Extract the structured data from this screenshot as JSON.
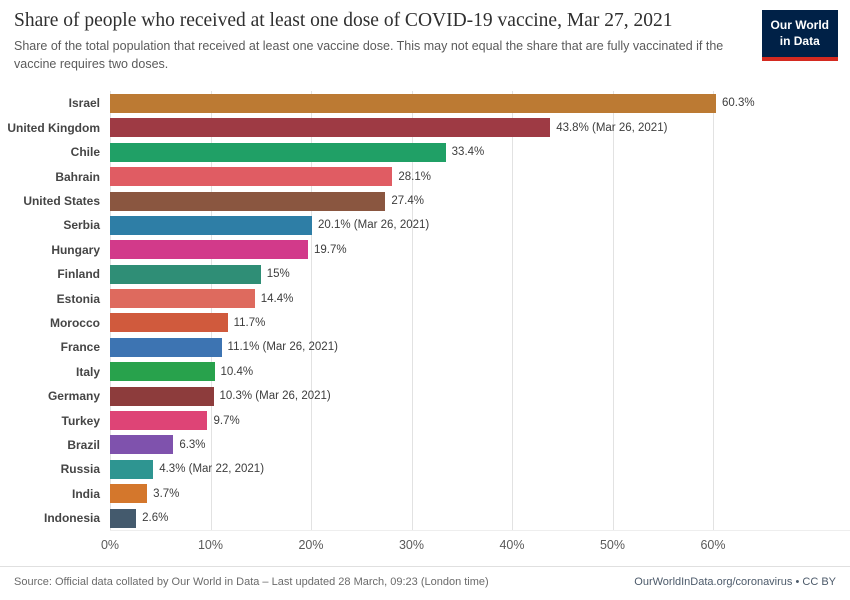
{
  "header": {
    "title": "Share of people who received at least one dose of COVID-19 vaccine, Mar 27, 2021",
    "subtitle": "Share of the total population that received at least one vaccine dose. This may not equal the share that are fully vaccinated if the vaccine requires two doses.",
    "logo": {
      "line1": "Our World",
      "line2": "in Data",
      "bg_color": "#002147",
      "accent_color": "#d42a20"
    }
  },
  "chart_data": {
    "type": "bar",
    "orientation": "horizontal",
    "unit": "%",
    "grid": true,
    "xlim": [
      0,
      60.9
    ],
    "x_ticks": [
      "0%",
      "10%",
      "20%",
      "30%",
      "40%",
      "50%",
      "60%"
    ],
    "x_tick_values": [
      0,
      10,
      20,
      30,
      40,
      50,
      60
    ],
    "bars": [
      {
        "label": "Israel",
        "value": 60.3,
        "display": "60.3%",
        "color": "#bc7a33"
      },
      {
        "label": "United Kingdom",
        "value": 43.8,
        "display": "43.8% (Mar 26, 2021)",
        "color": "#9e3a44"
      },
      {
        "label": "Chile",
        "value": 33.4,
        "display": "33.4%",
        "color": "#20a066"
      },
      {
        "label": "Bahrain",
        "value": 28.1,
        "display": "28.1%",
        "color": "#e05c63"
      },
      {
        "label": "United States",
        "value": 27.4,
        "display": "27.4%",
        "color": "#8a5640"
      },
      {
        "label": "Serbia",
        "value": 20.1,
        "display": "20.1% (Mar 26, 2021)",
        "color": "#2e7ea6"
      },
      {
        "label": "Hungary",
        "value": 19.7,
        "display": "19.7%",
        "color": "#d23a8a"
      },
      {
        "label": "Finland",
        "value": 15,
        "display": "15%",
        "color": "#2f8e76"
      },
      {
        "label": "Estonia",
        "value": 14.4,
        "display": "14.4%",
        "color": "#de6a5e"
      },
      {
        "label": "Morocco",
        "value": 11.7,
        "display": "11.7%",
        "color": "#d05a3d"
      },
      {
        "label": "France",
        "value": 11.1,
        "display": "11.1% (Mar 26, 2021)",
        "color": "#3d74b2"
      },
      {
        "label": "Italy",
        "value": 10.4,
        "display": "10.4%",
        "color": "#28a24c"
      },
      {
        "label": "Germany",
        "value": 10.3,
        "display": "10.3% (Mar 26, 2021)",
        "color": "#8d3c3c"
      },
      {
        "label": "Turkey",
        "value": 9.7,
        "display": "9.7%",
        "color": "#de4476"
      },
      {
        "label": "Brazil",
        "value": 6.3,
        "display": "6.3%",
        "color": "#7f52ad"
      },
      {
        "label": "Russia",
        "value": 4.3,
        "display": "4.3% (Mar 22, 2021)",
        "color": "#2e9591"
      },
      {
        "label": "India",
        "value": 3.7,
        "display": "3.7%",
        "color": "#d4772c"
      },
      {
        "label": "Indonesia",
        "value": 2.6,
        "display": "2.6%",
        "color": "#445a6d"
      }
    ]
  },
  "footer": {
    "source": "Source: Official data collated by Our World in Data – Last updated 28 March, 09:23 (London time)",
    "credit": "OurWorldInData.org/coronavirus • CC BY"
  }
}
